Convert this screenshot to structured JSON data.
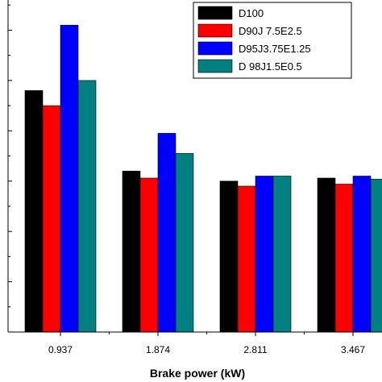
{
  "chart_data": {
    "type": "bar",
    "title": "",
    "xlabel": "Brake power (kW)",
    "ylabel": "",
    "categories": [
      "0.937",
      "1.874",
      "2.811",
      "3.467"
    ],
    "series": [
      {
        "name": "D100",
        "color": "#000000",
        "values": [
          4.8,
          3.2,
          3.0,
          3.06
        ]
      },
      {
        "name": "D90J 7.5E2.5",
        "color": "#ff0000",
        "values": [
          4.5,
          3.06,
          2.9,
          2.94
        ]
      },
      {
        "name": "D95J3.75E1.25",
        "color": "#0000ff",
        "values": [
          6.1,
          3.95,
          3.1,
          3.1
        ]
      },
      {
        "name": "D 98J1.5E0.5",
        "color": "#008080",
        "values": [
          5.0,
          3.55,
          3.1,
          3.04
        ]
      }
    ],
    "ylim": [
      0,
      6.6
    ],
    "grid": false,
    "legend_position": "top-right"
  }
}
